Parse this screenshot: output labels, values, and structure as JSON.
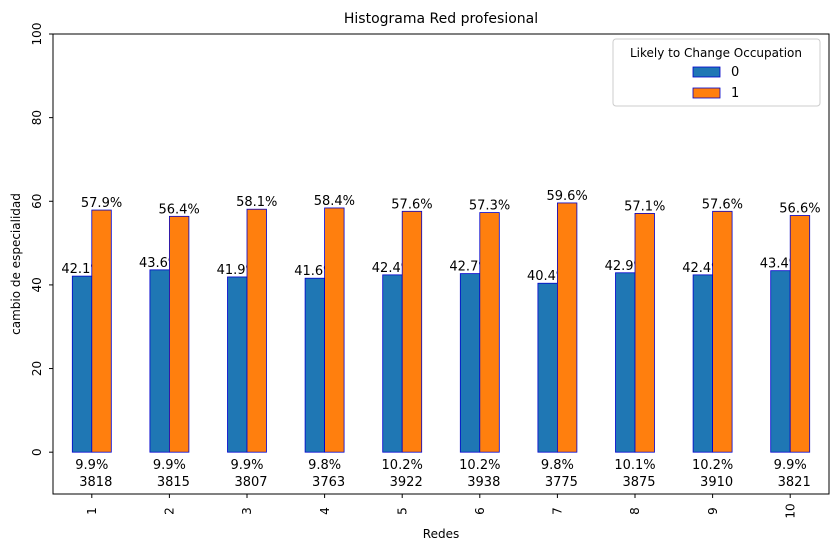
{
  "chart_data": {
    "type": "bar",
    "title": "Histograma Red profesional",
    "xlabel": "Redes",
    "ylabel": "cambio de especialidad",
    "ylim": [
      -10,
      100
    ],
    "yticks": [
      0,
      20,
      40,
      60,
      80,
      100
    ],
    "categories": [
      "1",
      "2",
      "3",
      "4",
      "5",
      "6",
      "7",
      "8",
      "9",
      "10"
    ],
    "series": [
      {
        "name": "0",
        "color": "#1f77b4",
        "values": [
          42.1,
          43.6,
          41.9,
          41.6,
          42.4,
          42.7,
          40.4,
          42.9,
          42.4,
          43.4
        ],
        "labels": [
          "42.1%",
          "43.6%",
          "41.9%",
          "41.6%",
          "42.4%",
          "42.7%",
          "40.4%",
          "42.9%",
          "42.4%",
          "43.4%"
        ]
      },
      {
        "name": "1",
        "color": "#ff7f0e",
        "values": [
          57.9,
          56.4,
          58.1,
          58.4,
          57.6,
          57.3,
          59.6,
          57.1,
          57.6,
          56.6
        ],
        "labels": [
          "57.9%",
          "56.4%",
          "58.1%",
          "58.4%",
          "57.6%",
          "57.3%",
          "59.6%",
          "57.1%",
          "57.6%",
          "56.6%"
        ]
      }
    ],
    "bar_edge_color": "#0000cc",
    "category_annotations": [
      {
        "pct": "9.9%",
        "count": "3818"
      },
      {
        "pct": "9.9%",
        "count": "3815"
      },
      {
        "pct": "9.9%",
        "count": "3807"
      },
      {
        "pct": "9.8%",
        "count": "3763"
      },
      {
        "pct": "10.2%",
        "count": "3922"
      },
      {
        "pct": "10.2%",
        "count": "3938"
      },
      {
        "pct": "9.8%",
        "count": "3775"
      },
      {
        "pct": "10.1%",
        "count": "3875"
      },
      {
        "pct": "10.2%",
        "count": "3910"
      },
      {
        "pct": "9.9%",
        "count": "3821"
      }
    ],
    "legend": {
      "title": "Likely to Change Occupation",
      "position": "top-right"
    },
    "grid": false
  }
}
